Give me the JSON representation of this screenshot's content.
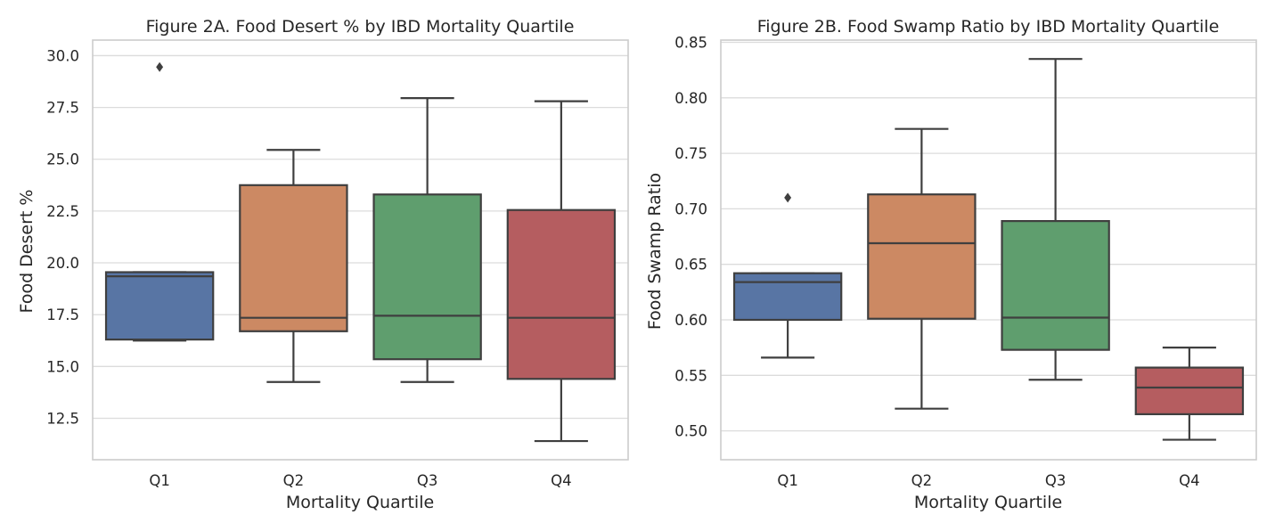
{
  "chart_data": [
    {
      "type": "box",
      "title": "Figure 2A. Food Desert % by IBD Mortality Quartile",
      "xlabel": "Mortality Quartile",
      "ylabel": "Food Desert %",
      "ylim": [
        10.5,
        30.75
      ],
      "yticks": [
        "12.5",
        "15.0",
        "17.5",
        "20.0",
        "22.5",
        "25.0",
        "27.5",
        "30.0"
      ],
      "grid": true,
      "categories": [
        "Q1",
        "Q2",
        "Q3",
        "Q4"
      ],
      "boxes": [
        {
          "category": "Q1",
          "whisker_low": 16.25,
          "q1": 16.3,
          "median": 19.35,
          "q3": 19.55,
          "whisker_high": 19.55,
          "outliers": [
            29.45
          ],
          "color": "#5875a4"
        },
        {
          "category": "Q2",
          "whisker_low": 14.25,
          "q1": 16.7,
          "median": 17.35,
          "q3": 23.75,
          "whisker_high": 25.45,
          "outliers": [],
          "color": "#cc8963"
        },
        {
          "category": "Q3",
          "whisker_low": 14.25,
          "q1": 15.35,
          "median": 17.45,
          "q3": 23.3,
          "whisker_high": 27.95,
          "outliers": [],
          "color": "#5f9e6e"
        },
        {
          "category": "Q4",
          "whisker_low": 11.4,
          "q1": 14.4,
          "median": 17.35,
          "q3": 22.55,
          "whisker_high": 27.8,
          "outliers": [],
          "color": "#b55d60"
        }
      ]
    },
    {
      "type": "box",
      "title": "Figure 2B. Food Swamp Ratio by IBD Mortality Quartile",
      "xlabel": "Mortality Quartile",
      "ylabel": "Food Swamp Ratio",
      "ylim": [
        0.474,
        0.852
      ],
      "yticks": [
        "0.50",
        "0.55",
        "0.60",
        "0.65",
        "0.70",
        "0.75",
        "0.80",
        "0.85"
      ],
      "grid": true,
      "categories": [
        "Q1",
        "Q2",
        "Q3",
        "Q4"
      ],
      "boxes": [
        {
          "category": "Q1",
          "whisker_low": 0.566,
          "q1": 0.6,
          "median": 0.634,
          "q3": 0.642,
          "whisker_high": 0.642,
          "outliers": [
            0.71
          ],
          "color": "#5875a4"
        },
        {
          "category": "Q2",
          "whisker_low": 0.52,
          "q1": 0.601,
          "median": 0.669,
          "q3": 0.713,
          "whisker_high": 0.772,
          "outliers": [],
          "color": "#cc8963"
        },
        {
          "category": "Q3",
          "whisker_low": 0.546,
          "q1": 0.573,
          "median": 0.602,
          "q3": 0.689,
          "whisker_high": 0.835,
          "outliers": [],
          "color": "#5f9e6e"
        },
        {
          "category": "Q4",
          "whisker_low": 0.492,
          "q1": 0.515,
          "median": 0.539,
          "q3": 0.557,
          "whisker_high": 0.575,
          "outliers": [],
          "color": "#b55d60"
        }
      ]
    }
  ]
}
